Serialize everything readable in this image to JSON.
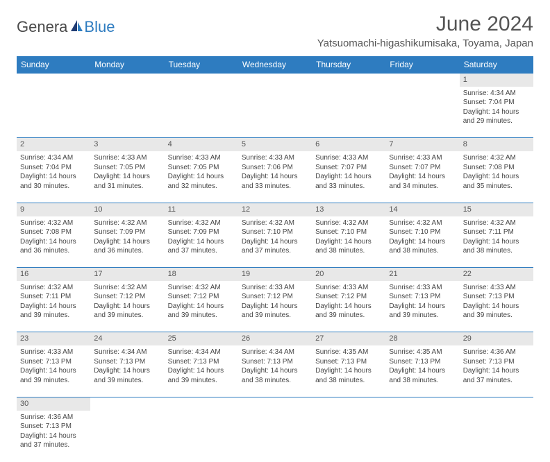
{
  "brand": {
    "part1": "Genera",
    "part2": "Blue"
  },
  "title": "June 2024",
  "location": "Yatsuomachi-higashikumisaka, Toyama, Japan",
  "colors": {
    "header_bg": "#2e7cc0",
    "header_fg": "#ffffff",
    "daynum_bg": "#e8e8e8",
    "text": "#444444",
    "title": "#555555",
    "border": "#2e7cc0",
    "page_bg": "#ffffff"
  },
  "weekdays": [
    "Sunday",
    "Monday",
    "Tuesday",
    "Wednesday",
    "Thursday",
    "Friday",
    "Saturday"
  ],
  "weeks": [
    [
      null,
      null,
      null,
      null,
      null,
      null,
      {
        "d": "1",
        "sr": "4:34 AM",
        "ss": "7:04 PM",
        "dl": "14 hours and 29 minutes."
      }
    ],
    [
      {
        "d": "2",
        "sr": "4:34 AM",
        "ss": "7:04 PM",
        "dl": "14 hours and 30 minutes."
      },
      {
        "d": "3",
        "sr": "4:33 AM",
        "ss": "7:05 PM",
        "dl": "14 hours and 31 minutes."
      },
      {
        "d": "4",
        "sr": "4:33 AM",
        "ss": "7:05 PM",
        "dl": "14 hours and 32 minutes."
      },
      {
        "d": "5",
        "sr": "4:33 AM",
        "ss": "7:06 PM",
        "dl": "14 hours and 33 minutes."
      },
      {
        "d": "6",
        "sr": "4:33 AM",
        "ss": "7:07 PM",
        "dl": "14 hours and 33 minutes."
      },
      {
        "d": "7",
        "sr": "4:33 AM",
        "ss": "7:07 PM",
        "dl": "14 hours and 34 minutes."
      },
      {
        "d": "8",
        "sr": "4:32 AM",
        "ss": "7:08 PM",
        "dl": "14 hours and 35 minutes."
      }
    ],
    [
      {
        "d": "9",
        "sr": "4:32 AM",
        "ss": "7:08 PM",
        "dl": "14 hours and 36 minutes."
      },
      {
        "d": "10",
        "sr": "4:32 AM",
        "ss": "7:09 PM",
        "dl": "14 hours and 36 minutes."
      },
      {
        "d": "11",
        "sr": "4:32 AM",
        "ss": "7:09 PM",
        "dl": "14 hours and 37 minutes."
      },
      {
        "d": "12",
        "sr": "4:32 AM",
        "ss": "7:10 PM",
        "dl": "14 hours and 37 minutes."
      },
      {
        "d": "13",
        "sr": "4:32 AM",
        "ss": "7:10 PM",
        "dl": "14 hours and 38 minutes."
      },
      {
        "d": "14",
        "sr": "4:32 AM",
        "ss": "7:10 PM",
        "dl": "14 hours and 38 minutes."
      },
      {
        "d": "15",
        "sr": "4:32 AM",
        "ss": "7:11 PM",
        "dl": "14 hours and 38 minutes."
      }
    ],
    [
      {
        "d": "16",
        "sr": "4:32 AM",
        "ss": "7:11 PM",
        "dl": "14 hours and 39 minutes."
      },
      {
        "d": "17",
        "sr": "4:32 AM",
        "ss": "7:12 PM",
        "dl": "14 hours and 39 minutes."
      },
      {
        "d": "18",
        "sr": "4:32 AM",
        "ss": "7:12 PM",
        "dl": "14 hours and 39 minutes."
      },
      {
        "d": "19",
        "sr": "4:33 AM",
        "ss": "7:12 PM",
        "dl": "14 hours and 39 minutes."
      },
      {
        "d": "20",
        "sr": "4:33 AM",
        "ss": "7:12 PM",
        "dl": "14 hours and 39 minutes."
      },
      {
        "d": "21",
        "sr": "4:33 AM",
        "ss": "7:13 PM",
        "dl": "14 hours and 39 minutes."
      },
      {
        "d": "22",
        "sr": "4:33 AM",
        "ss": "7:13 PM",
        "dl": "14 hours and 39 minutes."
      }
    ],
    [
      {
        "d": "23",
        "sr": "4:33 AM",
        "ss": "7:13 PM",
        "dl": "14 hours and 39 minutes."
      },
      {
        "d": "24",
        "sr": "4:34 AM",
        "ss": "7:13 PM",
        "dl": "14 hours and 39 minutes."
      },
      {
        "d": "25",
        "sr": "4:34 AM",
        "ss": "7:13 PM",
        "dl": "14 hours and 39 minutes."
      },
      {
        "d": "26",
        "sr": "4:34 AM",
        "ss": "7:13 PM",
        "dl": "14 hours and 38 minutes."
      },
      {
        "d": "27",
        "sr": "4:35 AM",
        "ss": "7:13 PM",
        "dl": "14 hours and 38 minutes."
      },
      {
        "d": "28",
        "sr": "4:35 AM",
        "ss": "7:13 PM",
        "dl": "14 hours and 38 minutes."
      },
      {
        "d": "29",
        "sr": "4:36 AM",
        "ss": "7:13 PM",
        "dl": "14 hours and 37 minutes."
      }
    ],
    [
      {
        "d": "30",
        "sr": "4:36 AM",
        "ss": "7:13 PM",
        "dl": "14 hours and 37 minutes."
      },
      null,
      null,
      null,
      null,
      null,
      null
    ]
  ],
  "labels": {
    "sunrise": "Sunrise:",
    "sunset": "Sunset:",
    "daylight": "Daylight:"
  }
}
